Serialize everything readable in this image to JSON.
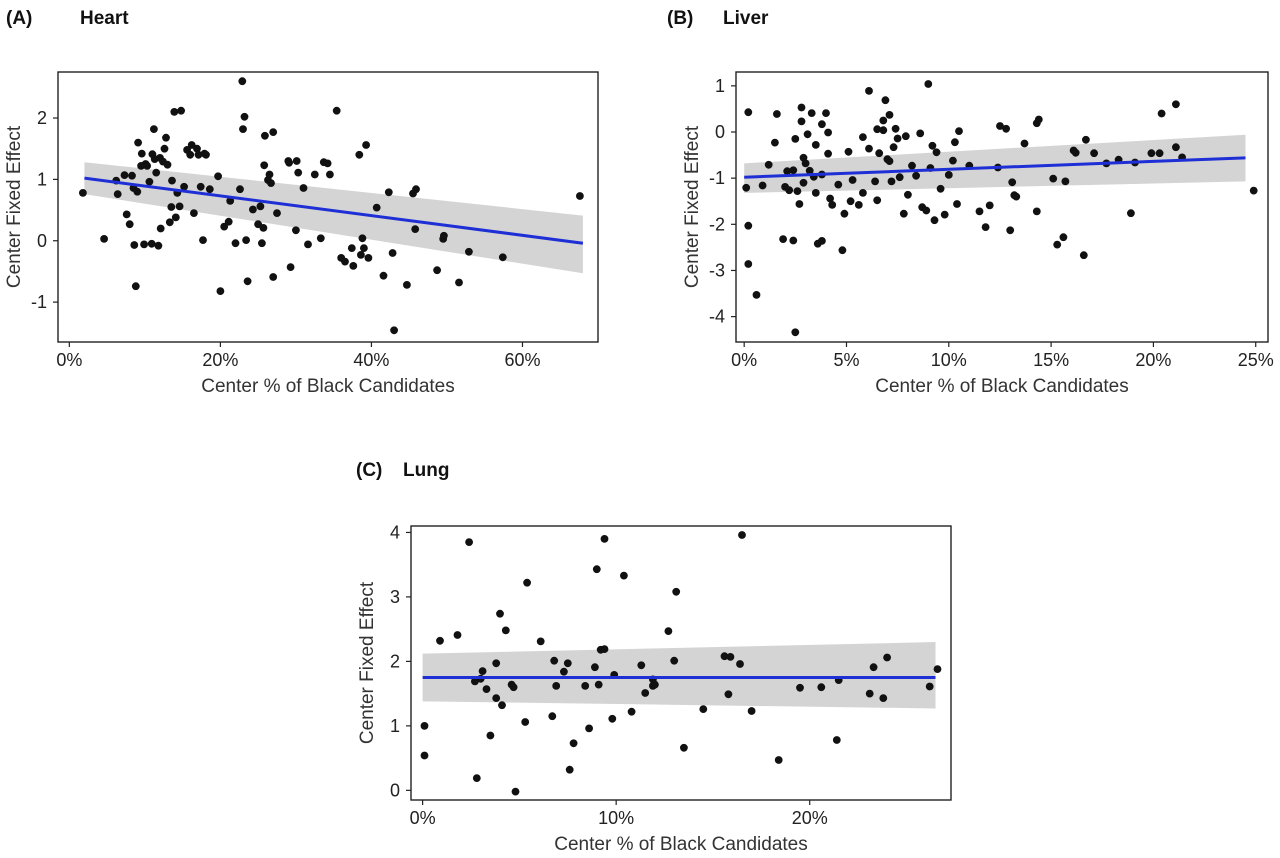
{
  "figure": {
    "panels": [
      {
        "id": "A",
        "tag": "(A)",
        "name": "Heart"
      },
      {
        "id": "B",
        "tag": "(B)",
        "name": "Liver"
      },
      {
        "id": "C",
        "tag": "(C)",
        "name": "Lung"
      }
    ]
  },
  "chart_data": [
    {
      "type": "scatter",
      "title": "Heart",
      "panel_label": "(A)",
      "xlabel": "Center % of Black Candidates",
      "ylabel": "Center Fixed Effect",
      "xlim": [
        -1.5,
        70
      ],
      "ylim": [
        -1.65,
        2.75
      ],
      "xticks": [
        0,
        20,
        40,
        60
      ],
      "xtick_labels": [
        "0%",
        "20%",
        "40%",
        "60%"
      ],
      "yticks": [
        -1,
        0,
        1,
        2
      ],
      "ytick_labels": [
        "-1",
        "0",
        "1",
        "2"
      ],
      "trend": {
        "x": [
          2,
          68
        ],
        "y": [
          1.02,
          -0.04
        ]
      },
      "ci_band": {
        "x": [
          2,
          68
        ],
        "lower": [
          0.76,
          -0.53
        ],
        "upper": [
          1.28,
          0.41
        ]
      },
      "colors": {
        "points": "#111111",
        "trend": "#1f2fd6",
        "band": "#d4d4d4"
      },
      "points": [
        [
          1.8,
          0.78
        ],
        [
          4.6,
          0.03
        ],
        [
          6.2,
          0.98
        ],
        [
          6.4,
          0.76
        ],
        [
          7.3,
          1.07
        ],
        [
          7.6,
          0.43
        ],
        [
          8,
          0.27
        ],
        [
          8.3,
          1.06
        ],
        [
          8.5,
          0.86
        ],
        [
          8.6,
          -0.07
        ],
        [
          8.8,
          -0.74
        ],
        [
          9,
          0.8
        ],
        [
          9.1,
          1.6
        ],
        [
          9.5,
          1.22
        ],
        [
          9.6,
          1.42
        ],
        [
          9.9,
          -0.06
        ],
        [
          10.1,
          1.25
        ],
        [
          10.3,
          1.22
        ],
        [
          10.6,
          0.96
        ],
        [
          10.9,
          -0.05
        ],
        [
          11,
          1.41
        ],
        [
          11.2,
          1.82
        ],
        [
          11.3,
          1.33
        ],
        [
          11.5,
          1.11
        ],
        [
          11.8,
          -0.08
        ],
        [
          12,
          1.35
        ],
        [
          12.1,
          0.2
        ],
        [
          12.4,
          1.29
        ],
        [
          12.6,
          1.5
        ],
        [
          12.8,
          1.68
        ],
        [
          13,
          1.24
        ],
        [
          13.3,
          0.3
        ],
        [
          13.5,
          0.55
        ],
        [
          13.6,
          0.98
        ],
        [
          13.9,
          2.1
        ],
        [
          14.1,
          0.38
        ],
        [
          14.3,
          0.78
        ],
        [
          14.6,
          0.56
        ],
        [
          14.8,
          2.12
        ],
        [
          15.2,
          0.88
        ],
        [
          15.6,
          1.48
        ],
        [
          16,
          1.4
        ],
        [
          16.2,
          1.56
        ],
        [
          16.5,
          0.45
        ],
        [
          16.9,
          1.5
        ],
        [
          17.1,
          1.4
        ],
        [
          17.4,
          0.88
        ],
        [
          17.7,
          0.01
        ],
        [
          17.9,
          1.42
        ],
        [
          18.1,
          1.4
        ],
        [
          18.6,
          0.84
        ],
        [
          19.7,
          1.05
        ],
        [
          20,
          -0.82
        ],
        [
          20.5,
          0.23
        ],
        [
          21.1,
          0.31
        ],
        [
          21.3,
          0.65
        ],
        [
          22,
          -0.04
        ],
        [
          22.6,
          0.84
        ],
        [
          22.9,
          2.6
        ],
        [
          23,
          1.82
        ],
        [
          23.2,
          2.02
        ],
        [
          23.4,
          0.01
        ],
        [
          23.6,
          -0.66
        ],
        [
          24.3,
          0.51
        ],
        [
          25,
          0.27
        ],
        [
          25.3,
          0.56
        ],
        [
          25.5,
          -0.04
        ],
        [
          25.7,
          0.21
        ],
        [
          25.8,
          1.23
        ],
        [
          25.9,
          1.71
        ],
        [
          26.3,
          0.99
        ],
        [
          26.5,
          1.08
        ],
        [
          26.7,
          0.94
        ],
        [
          27,
          1.77
        ],
        [
          27,
          -0.59
        ],
        [
          27.5,
          0.45
        ],
        [
          29,
          1.3
        ],
        [
          29.1,
          1.27
        ],
        [
          29.3,
          -0.43
        ],
        [
          30,
          0.17
        ],
        [
          30.1,
          1.3
        ],
        [
          30.3,
          1.11
        ],
        [
          31,
          0.86
        ],
        [
          31.6,
          -0.06
        ],
        [
          32.5,
          1.08
        ],
        [
          33.3,
          0.04
        ],
        [
          33.7,
          1.28
        ],
        [
          34.2,
          1.26
        ],
        [
          34.5,
          1.08
        ],
        [
          35.4,
          2.12
        ],
        [
          36,
          -0.28
        ],
        [
          36.5,
          -0.34
        ],
        [
          37.4,
          -0.12
        ],
        [
          37.6,
          -0.41
        ],
        [
          38.4,
          1.4
        ],
        [
          38.6,
          -0.23
        ],
        [
          38.8,
          0.04
        ],
        [
          39,
          -0.12
        ],
        [
          39.3,
          1.56
        ],
        [
          39.6,
          -0.28
        ],
        [
          40.7,
          0.54
        ],
        [
          41.6,
          -0.57
        ],
        [
          42.3,
          0.79
        ],
        [
          42.8,
          -0.2
        ],
        [
          43,
          -1.46
        ],
        [
          44.7,
          -0.72
        ],
        [
          45.5,
          0.77
        ],
        [
          45.8,
          0.19
        ],
        [
          45.9,
          0.84
        ],
        [
          48.7,
          -0.48
        ],
        [
          49.5,
          0.03
        ],
        [
          49.6,
          0.08
        ],
        [
          51.6,
          -0.68
        ],
        [
          52.9,
          -0.18
        ],
        [
          57.4,
          -0.27
        ],
        [
          67.6,
          0.73
        ]
      ]
    },
    {
      "type": "scatter",
      "title": "Liver",
      "panel_label": "(B)",
      "xlabel": "Center % of Black Candidates",
      "ylabel": "Center Fixed Effect",
      "xlim": [
        -0.4,
        25.6
      ],
      "ylim": [
        -4.55,
        1.3
      ],
      "xticks": [
        0,
        5,
        10,
        15,
        20,
        25
      ],
      "xtick_labels": [
        "0%",
        "5%",
        "10%",
        "15%",
        "20%",
        "25%"
      ],
      "yticks": [
        -4,
        -3,
        -2,
        -1,
        0,
        1
      ],
      "ytick_labels": [
        "-4",
        "-3",
        "-2",
        "-1",
        "0",
        "1"
      ],
      "trend": {
        "x": [
          0,
          24.5
        ],
        "y": [
          -0.98,
          -0.56
        ]
      },
      "ci_band": {
        "x": [
          0,
          24.5
        ],
        "lower": [
          -1.32,
          -1.07
        ],
        "upper": [
          -0.68,
          -0.06
        ]
      },
      "colors": {
        "points": "#111111",
        "trend": "#1f2fd6",
        "band": "#d4d4d4"
      },
      "points": [
        [
          0.1,
          -1.21
        ],
        [
          0.2,
          0.43
        ],
        [
          0.2,
          -2.03
        ],
        [
          0.2,
          -2.86
        ],
        [
          0.6,
          -3.53
        ],
        [
          0.9,
          -1.16
        ],
        [
          1.2,
          -0.71
        ],
        [
          1.5,
          -0.23
        ],
        [
          1.6,
          0.39
        ],
        [
          1.9,
          -2.32
        ],
        [
          2,
          -1.19
        ],
        [
          2.1,
          -0.85
        ],
        [
          2.2,
          -1.26
        ],
        [
          2.4,
          -2.35
        ],
        [
          2.4,
          -0.83
        ],
        [
          2.5,
          -0.15
        ],
        [
          2.5,
          -4.34
        ],
        [
          2.6,
          -1.28
        ],
        [
          2.7,
          -1.56
        ],
        [
          2.8,
          0.23
        ],
        [
          2.8,
          0.53
        ],
        [
          2.9,
          -0.56
        ],
        [
          2.9,
          -1.1
        ],
        [
          3,
          -0.68
        ],
        [
          3.1,
          -0.05
        ],
        [
          3.2,
          -0.84
        ],
        [
          3.3,
          0.41
        ],
        [
          3.4,
          -0.97
        ],
        [
          3.5,
          -1.32
        ],
        [
          3.5,
          -0.28
        ],
        [
          3.6,
          -2.42
        ],
        [
          3.8,
          0.17
        ],
        [
          3.8,
          -0.92
        ],
        [
          3.8,
          -2.36
        ],
        [
          4,
          0.41
        ],
        [
          4.1,
          -0.01
        ],
        [
          4.1,
          -0.47
        ],
        [
          4.2,
          -1.44
        ],
        [
          4.3,
          -1.58
        ],
        [
          4.6,
          -1.14
        ],
        [
          4.8,
          -2.56
        ],
        [
          4.9,
          -1.77
        ],
        [
          5.1,
          -0.43
        ],
        [
          5.2,
          -1.5
        ],
        [
          5.3,
          -1.04
        ],
        [
          5.6,
          -1.58
        ],
        [
          5.8,
          -0.11
        ],
        [
          5.8,
          -1.32
        ],
        [
          6.1,
          0.89
        ],
        [
          6.1,
          -0.36
        ],
        [
          6.4,
          -1.07
        ],
        [
          6.5,
          0.06
        ],
        [
          6.5,
          -1.48
        ],
        [
          6.6,
          -0.46
        ],
        [
          6.8,
          0.25
        ],
        [
          6.8,
          0.04
        ],
        [
          6.9,
          0.69
        ],
        [
          7,
          -0.59
        ],
        [
          7.1,
          0.37
        ],
        [
          7.1,
          -0.63
        ],
        [
          7.2,
          -1.07
        ],
        [
          7.3,
          -0.33
        ],
        [
          7.4,
          0.07
        ],
        [
          7.5,
          -0.14
        ],
        [
          7.6,
          -0.98
        ],
        [
          7.8,
          -1.77
        ],
        [
          7.9,
          -0.09
        ],
        [
          8,
          -1.36
        ],
        [
          8.2,
          -0.73
        ],
        [
          8.4,
          -0.95
        ],
        [
          8.6,
          -0.03
        ],
        [
          8.7,
          -1.63
        ],
        [
          8.9,
          -1.7
        ],
        [
          9,
          1.04
        ],
        [
          9.1,
          -0.78
        ],
        [
          9.2,
          -0.3
        ],
        [
          9.3,
          -1.91
        ],
        [
          9.4,
          -0.44
        ],
        [
          9.6,
          -1.23
        ],
        [
          9.8,
          -1.79
        ],
        [
          10,
          -0.93
        ],
        [
          10.2,
          -0.62
        ],
        [
          10.3,
          -0.22
        ],
        [
          10.4,
          -1.56
        ],
        [
          10.5,
          0.02
        ],
        [
          11,
          -0.73
        ],
        [
          11.5,
          -1.72
        ],
        [
          11.8,
          -2.06
        ],
        [
          12,
          -1.59
        ],
        [
          12.4,
          -0.77
        ],
        [
          12.5,
          0.13
        ],
        [
          12.8,
          0.07
        ],
        [
          13,
          -2.13
        ],
        [
          13.1,
          -1.09
        ],
        [
          13.2,
          -1.37
        ],
        [
          13.3,
          -1.4
        ],
        [
          13.7,
          -0.25
        ],
        [
          14.3,
          -1.72
        ],
        [
          14.3,
          0.19
        ],
        [
          14.4,
          0.27
        ],
        [
          15.1,
          -1.01
        ],
        [
          15.3,
          -2.44
        ],
        [
          15.6,
          -2.28
        ],
        [
          15.7,
          -1.07
        ],
        [
          16.1,
          -0.4
        ],
        [
          16.2,
          -0.45
        ],
        [
          16.6,
          -2.67
        ],
        [
          16.7,
          -0.17
        ],
        [
          17.1,
          -0.46
        ],
        [
          17.7,
          -0.68
        ],
        [
          18.3,
          -0.6
        ],
        [
          18.9,
          -1.76
        ],
        [
          19.1,
          -0.66
        ],
        [
          19.9,
          -0.46
        ],
        [
          20.3,
          -0.46
        ],
        [
          20.4,
          0.4
        ],
        [
          21.1,
          0.6
        ],
        [
          21.1,
          -0.33
        ],
        [
          21.4,
          -0.55
        ],
        [
          24.9,
          -1.27
        ]
      ]
    },
    {
      "type": "scatter",
      "title": "Lung",
      "panel_label": "(C)",
      "xlabel": "Center % of Black Candidates",
      "ylabel": "Center Fixed Effect",
      "xlim": [
        -0.6,
        27.3
      ],
      "ylim": [
        -0.15,
        4.1
      ],
      "xticks": [
        0,
        10,
        20
      ],
      "xtick_labels": [
        "0%",
        "10%",
        "20%"
      ],
      "yticks": [
        0,
        1,
        2,
        3,
        4
      ],
      "ytick_labels": [
        "0",
        "1",
        "2",
        "3",
        "4"
      ],
      "trend": {
        "x": [
          0,
          26.5
        ],
        "y": [
          1.75,
          1.75
        ]
      },
      "ci_band": {
        "x": [
          0,
          26.5
        ],
        "lower": [
          1.38,
          1.27
        ],
        "upper": [
          2.12,
          2.3
        ]
      },
      "colors": {
        "points": "#111111",
        "trend": "#1f2fd6",
        "band": "#d4d4d4"
      },
      "points": [
        [
          0.1,
          1
        ],
        [
          0.1,
          0.54
        ],
        [
          0.9,
          2.32
        ],
        [
          1.8,
          2.41
        ],
        [
          2.4,
          3.85
        ],
        [
          2.7,
          1.69
        ],
        [
          2.8,
          0.19
        ],
        [
          3,
          1.73
        ],
        [
          3.1,
          1.85
        ],
        [
          3.3,
          1.57
        ],
        [
          3.5,
          0.85
        ],
        [
          3.8,
          1.43
        ],
        [
          3.8,
          1.97
        ],
        [
          4,
          2.74
        ],
        [
          4.1,
          1.32
        ],
        [
          4.3,
          2.48
        ],
        [
          4.6,
          1.64
        ],
        [
          4.7,
          1.6
        ],
        [
          4.8,
          -0.02
        ],
        [
          5.3,
          1.06
        ],
        [
          5.4,
          3.22
        ],
        [
          6.1,
          2.31
        ],
        [
          6.7,
          1.15
        ],
        [
          6.8,
          2.01
        ],
        [
          6.9,
          1.62
        ],
        [
          7.3,
          1.84
        ],
        [
          7.5,
          1.97
        ],
        [
          7.6,
          0.32
        ],
        [
          7.8,
          0.73
        ],
        [
          8.4,
          1.62
        ],
        [
          8.6,
          0.96
        ],
        [
          8.9,
          1.91
        ],
        [
          9,
          3.43
        ],
        [
          9.1,
          1.64
        ],
        [
          9.2,
          2.18
        ],
        [
          9.4,
          3.9
        ],
        [
          9.4,
          2.19
        ],
        [
          9.8,
          1.11
        ],
        [
          9.9,
          1.79
        ],
        [
          10.4,
          3.33
        ],
        [
          10.8,
          1.22
        ],
        [
          11.3,
          1.94
        ],
        [
          11.5,
          1.51
        ],
        [
          11.9,
          1.62
        ],
        [
          11.9,
          1.72
        ],
        [
          12,
          1.64
        ],
        [
          12.7,
          2.47
        ],
        [
          13,
          2.01
        ],
        [
          13.1,
          3.08
        ],
        [
          13.5,
          0.66
        ],
        [
          14.5,
          1.26
        ],
        [
          15.6,
          2.08
        ],
        [
          15.8,
          1.49
        ],
        [
          15.9,
          2.07
        ],
        [
          16.4,
          1.96
        ],
        [
          16.5,
          3.96
        ],
        [
          17,
          1.23
        ],
        [
          18.4,
          0.47
        ],
        [
          19.5,
          1.59
        ],
        [
          20.6,
          1.6
        ],
        [
          21.4,
          0.78
        ],
        [
          21.5,
          1.71
        ],
        [
          23.1,
          1.5
        ],
        [
          23.3,
          1.91
        ],
        [
          23.8,
          1.43
        ],
        [
          24,
          2.06
        ],
        [
          26.2,
          1.61
        ],
        [
          26.6,
          1.88
        ]
      ]
    }
  ]
}
